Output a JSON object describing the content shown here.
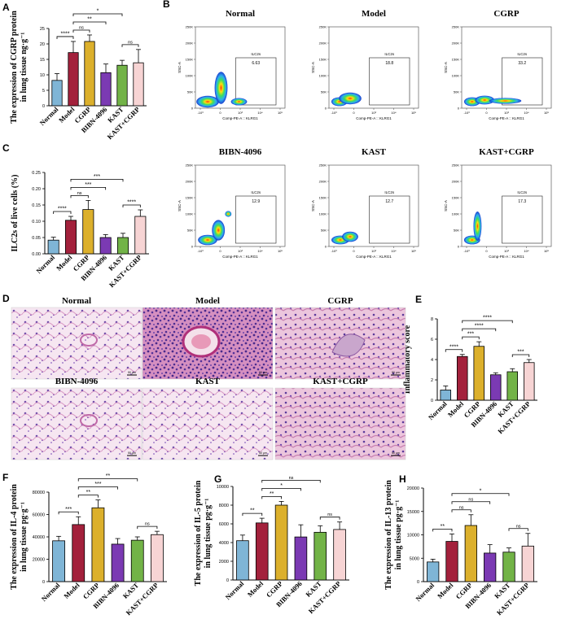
{
  "panel_letters": [
    "A",
    "B",
    "C",
    "D",
    "E",
    "F",
    "G",
    "H"
  ],
  "bar_colors": [
    "#7fb5d6",
    "#a3213c",
    "#dcb02c",
    "#7b3ab3",
    "#72b347",
    "#f7d4d4"
  ],
  "groups": [
    "Normal",
    "Model",
    "CGRP",
    "BIBN-4096",
    "KAST",
    "KAST+CGRP"
  ],
  "chart_data": [
    {
      "id": "A",
      "type": "bar",
      "ylabel": [
        "The expression of CGRP protein",
        "in lung tissue ng·g⁻¹"
      ],
      "categories": [
        "Normal",
        "Model",
        "CGRP",
        "BIBN-4096",
        "KAST",
        "KAST+CGRP"
      ],
      "values": [
        8.2,
        17.2,
        20.8,
        10.7,
        13.1,
        13.9
      ],
      "errors": [
        2.2,
        3.6,
        2.1,
        2.8,
        1.6,
        4.3
      ],
      "ylim": [
        0,
        25
      ],
      "yticks": [
        "0",
        "5",
        "10",
        "15",
        "20",
        "25"
      ],
      "annotations": [
        {
          "from": 0,
          "to": 1,
          "label": "****",
          "level": 0
        },
        {
          "from": 1,
          "to": 2,
          "label": "ns",
          "level": 0
        },
        {
          "from": 1,
          "to": 3,
          "label": "**",
          "level": 1
        },
        {
          "from": 1,
          "to": 4,
          "label": "*",
          "level": 2
        },
        {
          "from": 4,
          "to": 5,
          "label": "ns",
          "level": 0
        }
      ]
    },
    {
      "id": "C",
      "type": "bar",
      "ylabel": [
        "ILC2s of live cells (%)"
      ],
      "categories": [
        "Normal",
        "Model",
        "CGRP",
        "BIBN-4096",
        "KAST",
        "KAST+CGRP"
      ],
      "values": [
        0.042,
        0.103,
        0.136,
        0.05,
        0.05,
        0.115
      ],
      "errors": [
        0.009,
        0.012,
        0.028,
        0.009,
        0.013,
        0.02
      ],
      "ylim": [
        0,
        0.25
      ],
      "yticks": [
        "0.00",
        "0.05",
        "0.10",
        "0.15",
        "0.20",
        "0.25"
      ],
      "annotations": [
        {
          "from": 0,
          "to": 1,
          "label": "****",
          "level": 0
        },
        {
          "from": 1,
          "to": 2,
          "label": "ns",
          "level": 0
        },
        {
          "from": 1,
          "to": 3,
          "label": "***",
          "level": 1
        },
        {
          "from": 1,
          "to": 4,
          "label": "***",
          "level": 2
        },
        {
          "from": 4,
          "to": 5,
          "label": "****",
          "level": 0
        }
      ]
    },
    {
      "id": "E",
      "type": "bar",
      "ylabel": [
        "Inflammatory score"
      ],
      "categories": [
        "Normal",
        "Model",
        "CGRP",
        "BIBN-4096",
        "KAST",
        "KAST+CGRP"
      ],
      "values": [
        1.0,
        4.3,
        5.3,
        2.5,
        2.8,
        3.7
      ],
      "errors": [
        0.4,
        0.2,
        0.45,
        0.2,
        0.3,
        0.3
      ],
      "ylim": [
        0,
        8
      ],
      "yticks": [
        "0",
        "2",
        "4",
        "6",
        "8"
      ],
      "annotations": [
        {
          "from": 0,
          "to": 1,
          "label": "****",
          "level": 0
        },
        {
          "from": 1,
          "to": 2,
          "label": "***",
          "level": 0
        },
        {
          "from": 1,
          "to": 3,
          "label": "****",
          "level": 1
        },
        {
          "from": 1,
          "to": 4,
          "label": "****",
          "level": 2
        },
        {
          "from": 4,
          "to": 5,
          "label": "***",
          "level": 0
        }
      ]
    },
    {
      "id": "F",
      "type": "bar",
      "ylabel": [
        "The expression of IL-4 protein",
        "in lung tissue pg·g⁻¹"
      ],
      "categories": [
        "Normal",
        "Model",
        "CGRP",
        "BIBN-4096",
        "KAST",
        "KAST+CGRP"
      ],
      "values": [
        36500,
        51000,
        66000,
        33500,
        37000,
        42000
      ],
      "errors": [
        4000,
        7000,
        7000,
        5000,
        3000,
        3000
      ],
      "ylim": [
        0,
        80000
      ],
      "yticks": [
        "0",
        "20000",
        "40000",
        "60000",
        "80000"
      ],
      "annotations": [
        {
          "from": 0,
          "to": 1,
          "label": "***",
          "level": 0
        },
        {
          "from": 1,
          "to": 2,
          "label": "**",
          "level": 0
        },
        {
          "from": 1,
          "to": 3,
          "label": "***",
          "level": 1
        },
        {
          "from": 1,
          "to": 4,
          "label": "**",
          "level": 2
        },
        {
          "from": 4,
          "to": 5,
          "label": "ns",
          "level": 0
        }
      ]
    },
    {
      "id": "G",
      "type": "bar",
      "ylabel": [
        "The expression of IL-5 protein",
        "in lung tissue pg·g⁻¹"
      ],
      "categories": [
        "Normal",
        "Model",
        "CGRP",
        "BIBN-4096",
        "KAST",
        "KAST+CGRP"
      ],
      "values": [
        4200,
        6100,
        8000,
        4600,
        5100,
        5400
      ],
      "errors": [
        600,
        500,
        400,
        1300,
        700,
        800
      ],
      "ylim": [
        0,
        10000
      ],
      "yticks": [
        "0",
        "2000",
        "4000",
        "6000",
        "8000",
        "10000"
      ],
      "annotations": [
        {
          "from": 0,
          "to": 1,
          "label": "**",
          "level": 0
        },
        {
          "from": 1,
          "to": 2,
          "label": "**",
          "level": 0
        },
        {
          "from": 1,
          "to": 3,
          "label": "*",
          "level": 1
        },
        {
          "from": 1,
          "to": 4,
          "label": "ns",
          "level": 2
        },
        {
          "from": 4,
          "to": 5,
          "label": "ns",
          "level": 0
        }
      ]
    },
    {
      "id": "H",
      "type": "bar",
      "ylabel": [
        "The expression of IL-13 protein",
        "in lung tissue pg·g⁻¹"
      ],
      "categories": [
        "Normal",
        "Model",
        "CGRP",
        "BIBN-4096",
        "KAST",
        "KAST+CGRP"
      ],
      "values": [
        4200,
        8600,
        12000,
        6100,
        6300,
        7600
      ],
      "errors": [
        600,
        1600,
        2300,
        1800,
        900,
        2700
      ],
      "ylim": [
        0,
        20000
      ],
      "yticks": [
        "0",
        "5000",
        "10000",
        "15000",
        "20000"
      ],
      "annotations": [
        {
          "from": 0,
          "to": 1,
          "label": "**",
          "level": 0
        },
        {
          "from": 1,
          "to": 2,
          "label": "ns",
          "level": 0
        },
        {
          "from": 1,
          "to": 3,
          "label": "ns",
          "level": 1
        },
        {
          "from": 1,
          "to": 4,
          "label": "*",
          "level": 2
        },
        {
          "from": 4,
          "to": 5,
          "label": "ns",
          "level": 0
        }
      ]
    }
  ],
  "flow_plots": [
    {
      "title": "Normal",
      "gate_label": "ILC2s",
      "gate_value": "6.63"
    },
    {
      "title": "Model",
      "gate_label": "ILC2s",
      "gate_value": "18.8"
    },
    {
      "title": "CGRP",
      "gate_label": "ILC2s",
      "gate_value": "33.2"
    },
    {
      "title": "BIBN-4096",
      "gate_label": "ILC2s",
      "gate_value": "12.9"
    },
    {
      "title": "KAST",
      "gate_label": "ILC2s",
      "gate_value": "12.7"
    },
    {
      "title": "KAST+CGRP",
      "gate_label": "ILC2s",
      "gate_value": "17.3"
    }
  ],
  "flow_axes": {
    "ylabel": "SSC-A",
    "xlabel": "Comp-PE-A :: KLRG1",
    "yticks": [
      "0",
      "50K",
      "100K",
      "150K",
      "200K",
      "250K"
    ],
    "xticks": [
      "-10³",
      "0",
      "10³",
      "10⁴",
      "10⁵"
    ]
  },
  "histology": {
    "titles": [
      "Normal",
      "Model",
      "CGRP",
      "BIBN-4096",
      "KAST",
      "KAST+CGRP"
    ],
    "scale_label": "50 μm"
  }
}
